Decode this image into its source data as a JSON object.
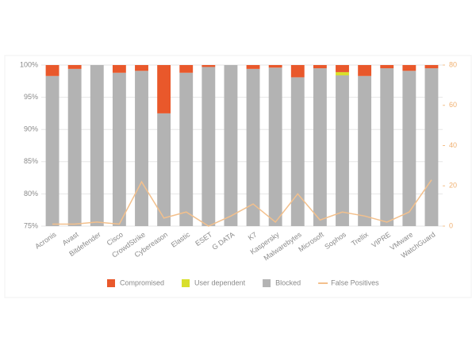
{
  "chart_data": {
    "type": "bar",
    "stacked": true,
    "categories": [
      "Acronis",
      "Avast",
      "Bitdefender",
      "Cisco",
      "CrowdStrike",
      "Cybereason",
      "Elastic",
      "ESET",
      "G DATA",
      "K7",
      "Kaspersky",
      "Malwarebytes",
      "Microsoft",
      "Sophos",
      "Trellix",
      "VIPRE",
      "VMware",
      "WatchGuard"
    ],
    "series": [
      {
        "name": "Blocked",
        "color": "#b3b3b3",
        "type": "bar",
        "values": [
          98.3,
          99.4,
          100,
          98.8,
          99.1,
          92.5,
          98.8,
          99.7,
          100,
          99.4,
          99.6,
          98.1,
          99.5,
          98.4,
          98.3,
          99.5,
          99.1,
          99.5
        ]
      },
      {
        "name": "User dependent",
        "color": "#d8df2c",
        "type": "bar",
        "values": [
          0,
          0,
          0,
          0,
          0,
          0,
          0,
          0,
          0,
          0,
          0,
          0,
          0,
          0.5,
          0,
          0,
          0,
          0
        ]
      },
      {
        "name": "Compromised",
        "color": "#e9582b",
        "type": "bar",
        "values": [
          1.7,
          0.6,
          0,
          1.2,
          0.9,
          7.5,
          1.2,
          0.3,
          0,
          0.6,
          0.4,
          1.9,
          0.5,
          1.1,
          1.7,
          0.5,
          0.9,
          0.5
        ]
      },
      {
        "name": "False Positives",
        "color": "#f3c08c",
        "type": "line",
        "axis": "y2",
        "values": [
          1,
          1,
          2,
          1,
          22,
          4,
          7,
          0,
          5,
          11,
          2,
          16,
          3,
          7,
          5,
          2,
          7,
          23
        ]
      }
    ],
    "legend_order": [
      2,
      1,
      0,
      3
    ],
    "ylim": [
      75,
      100
    ],
    "yticks": [
      {
        "value": 75,
        "label": "75%"
      },
      {
        "value": 80,
        "label": "80%"
      },
      {
        "value": 85,
        "label": "85%"
      },
      {
        "value": 90,
        "label": "90%"
      },
      {
        "value": 95,
        "label": "95%"
      },
      {
        "value": 100,
        "label": "100%"
      }
    ],
    "y2lim": [
      0,
      80
    ],
    "y2ticks": [
      0,
      20,
      40,
      60,
      80
    ],
    "grid": true,
    "legend": "bottom"
  }
}
